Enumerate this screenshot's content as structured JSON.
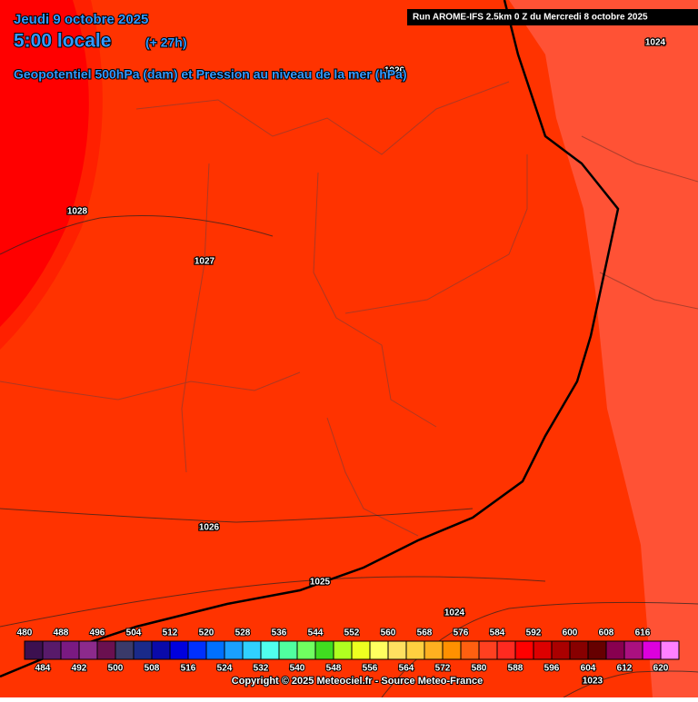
{
  "header": {
    "date": "Jeudi 9 octobre 2025",
    "time": "5:00 locale",
    "lead": "(+ 27h)",
    "subtitle": "Geopotentiel 500hPa (dam) et Pression au niveau de la mer (hPa)",
    "run": "Run AROME-IFS 2.5km 0 Z du Mercredi 8 octobre 2025"
  },
  "isobar_labels": [
    1028,
    1027,
    1026,
    1026,
    1025,
    1024,
    1024,
    1023
  ],
  "colorbar": {
    "levels": [
      480,
      484,
      488,
      492,
      496,
      500,
      504,
      508,
      512,
      516,
      520,
      524,
      528,
      532,
      536,
      540,
      544,
      548,
      552,
      556,
      560,
      564,
      568,
      572,
      576,
      580,
      584,
      588,
      592,
      596,
      600,
      604,
      608,
      612,
      616,
      620
    ],
    "colors": [
      "#3c1050",
      "#581a6a",
      "#7a1a82",
      "#8c2a8c",
      "#6a1050",
      "#3a3a6a",
      "#1a2a8a",
      "#0a0aaa",
      "#0000dd",
      "#0030ff",
      "#0070ff",
      "#1aa0ff",
      "#30d0ff",
      "#50ffee",
      "#50ffa0",
      "#70ff60",
      "#40dd20",
      "#b0ff20",
      "#eeff20",
      "#ffff60",
      "#ffe060",
      "#ffd040",
      "#ffb020",
      "#ff9000",
      "#ff6010",
      "#ff4020",
      "#ff2a20",
      "#ff0000",
      "#dd0000",
      "#aa0000",
      "#880000",
      "#660000",
      "#880050",
      "#aa1080",
      "#dd00dd",
      "#ff80ff"
    ]
  },
  "footer": {
    "copyright": "Copyright © 2025 Meteociel.fr - Source Meteo-France"
  }
}
